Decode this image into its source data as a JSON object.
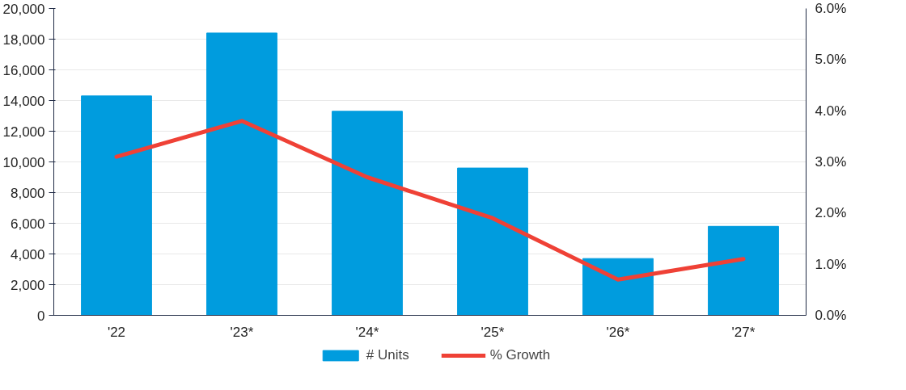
{
  "chart_data": {
    "type": "bar",
    "categories": [
      "'22",
      "'23*",
      "'24*",
      "'25*",
      "'26*",
      "'27*"
    ],
    "series": [
      {
        "name": "# Units",
        "color": "#009cde",
        "values": [
          14300,
          18400,
          13300,
          9600,
          3700,
          5800
        ]
      },
      {
        "name": "% Growth",
        "type": "line",
        "axis": "y2",
        "color": "#ef4136",
        "values": [
          3.1,
          3.8,
          2.7,
          1.9,
          0.7,
          1.1
        ]
      }
    ],
    "ylim": [
      0,
      20000
    ],
    "yticks": [
      {
        "value": 0,
        "label": "0"
      },
      {
        "value": 2000,
        "label": "2,000"
      },
      {
        "value": 4000,
        "label": "4,000"
      },
      {
        "value": 6000,
        "label": "6,000"
      },
      {
        "value": 8000,
        "label": "8,000"
      },
      {
        "value": 10000,
        "label": "10,000"
      },
      {
        "value": 12000,
        "label": "12,000"
      },
      {
        "value": 14000,
        "label": "14,000"
      },
      {
        "value": 16000,
        "label": "16,000"
      },
      {
        "value": 18000,
        "label": "18,000"
      },
      {
        "value": 20000,
        "label": "20,000"
      }
    ],
    "y2lim": [
      0,
      6
    ],
    "y2ticks": [
      {
        "value": 0,
        "label": "0.0%"
      },
      {
        "value": 1,
        "label": "1.0%"
      },
      {
        "value": 2,
        "label": "2.0%"
      },
      {
        "value": 3,
        "label": "3.0%"
      },
      {
        "value": 4,
        "label": "4.0%"
      },
      {
        "value": 5,
        "label": "5.0%"
      },
      {
        "value": 6,
        "label": "6.0%"
      }
    ],
    "grid": "y",
    "legend": "bottom",
    "marker": "none",
    "line_style": "solid"
  }
}
